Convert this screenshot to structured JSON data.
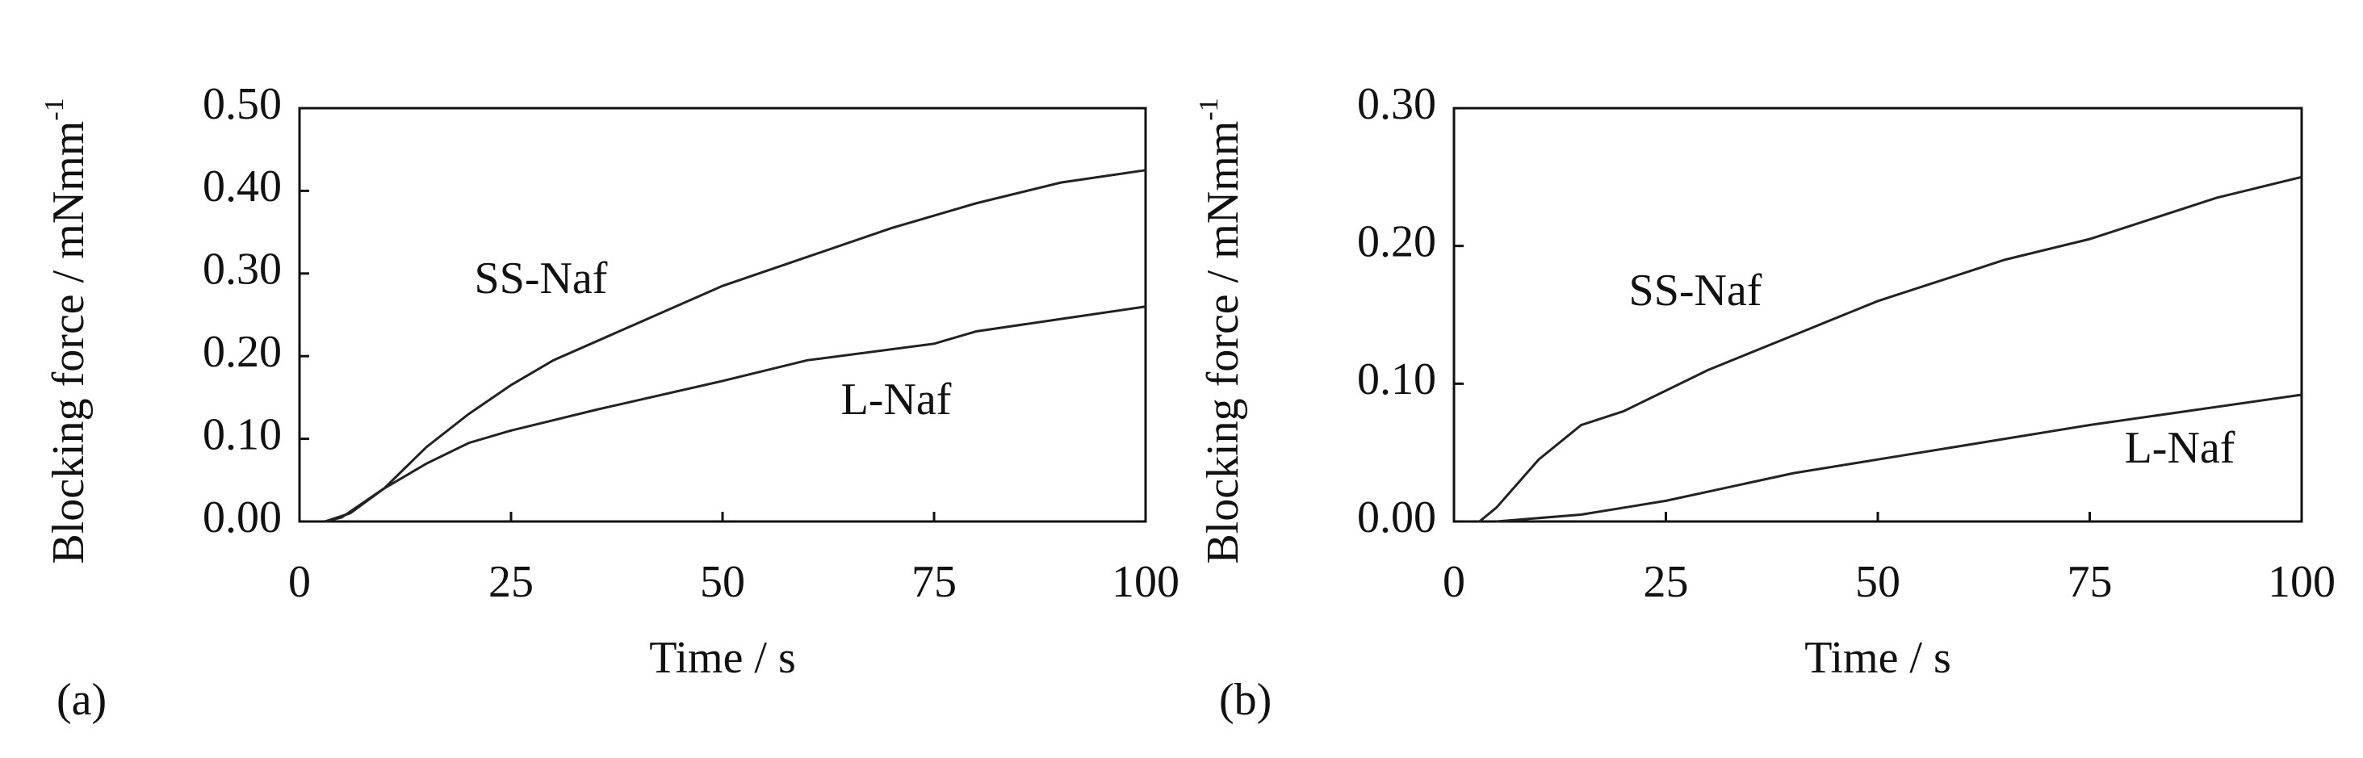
{
  "chart_data": [
    {
      "type": "line",
      "panel": "(a)",
      "xlabel": "Time / s",
      "ylabel": "Blocking  force / mNmm",
      "ylabel_sup": "-1",
      "xlim": [
        0,
        100
      ],
      "xticks": [
        0,
        25,
        50,
        75,
        100
      ],
      "ylim": [
        0,
        0.5
      ],
      "yticks": [
        {
          "value": 0,
          "label": "0.00"
        },
        {
          "value": 0.1,
          "label": "0.10"
        },
        {
          "value": 0.2,
          "label": "0.20"
        },
        {
          "value": 0.3,
          "label": "0.30"
        },
        {
          "value": 0.4,
          "label": "0.40"
        },
        {
          "value": 0.5,
          "label": "0.50"
        }
      ],
      "series": [
        {
          "name": "SS-Naf",
          "color": "#222222",
          "x": [
            3,
            5,
            10,
            15,
            20,
            25,
            30,
            40,
            50,
            60,
            70,
            80,
            90,
            100
          ],
          "values": [
            0,
            0.005,
            0.04,
            0.09,
            0.13,
            0.165,
            0.195,
            0.24,
            0.285,
            0.32,
            0.355,
            0.385,
            0.41,
            0.425
          ]
        },
        {
          "name": "L-Naf",
          "color": "#222222",
          "x": [
            3,
            6,
            10,
            15,
            20,
            25,
            35,
            50,
            60,
            75,
            80,
            90,
            100
          ],
          "values": [
            0,
            0.01,
            0.04,
            0.07,
            0.095,
            0.11,
            0.135,
            0.17,
            0.195,
            0.215,
            0.23,
            0.245,
            0.26
          ]
        }
      ]
    },
    {
      "type": "line",
      "panel": "(b)",
      "xlabel": "Time / s",
      "ylabel": "Blocking  force / mNmm",
      "ylabel_sup": "-1",
      "xlim": [
        0,
        100
      ],
      "xticks": [
        0,
        25,
        50,
        75,
        100
      ],
      "ylim": [
        0,
        0.3
      ],
      "yticks": [
        {
          "value": 0,
          "label": "0.00"
        },
        {
          "value": 0.1,
          "label": "0.10"
        },
        {
          "value": 0.2,
          "label": "0.20"
        },
        {
          "value": 0.3,
          "label": "0.30"
        }
      ],
      "series": [
        {
          "name": "SS-Naf",
          "color": "#222222",
          "x": [
            3,
            5,
            10,
            15,
            20,
            25,
            30,
            40,
            50,
            60,
            65,
            75,
            90,
            100
          ],
          "values": [
            0,
            0.01,
            0.045,
            0.07,
            0.08,
            0.095,
            0.11,
            0.135,
            0.16,
            0.18,
            0.19,
            0.205,
            0.235,
            0.25
          ]
        },
        {
          "name": "L-Naf",
          "color": "#222222",
          "x": [
            5,
            15,
            25,
            40,
            50,
            75,
            100
          ],
          "values": [
            0,
            0.005,
            0.015,
            0.035,
            0.045,
            0.07,
            0.092
          ]
        }
      ]
    }
  ]
}
